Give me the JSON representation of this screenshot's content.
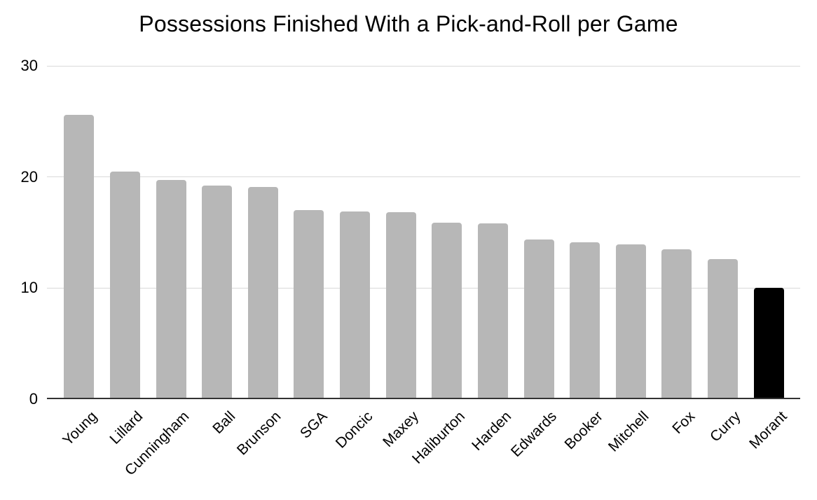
{
  "chart_data": {
    "type": "bar",
    "title": "Possessions Finished With a Pick-and-Roll per Game",
    "categories": [
      "Young",
      "Lillard",
      "Cunningham",
      "Ball",
      "Brunson",
      "SGA",
      "Doncic",
      "Maxey",
      "Haliburton",
      "Harden",
      "Edwards",
      "Booker",
      "Mitchell",
      "Fox",
      "Curry",
      "Morant"
    ],
    "values": [
      25.6,
      20.5,
      19.7,
      19.2,
      19.1,
      17.0,
      16.9,
      16.8,
      15.9,
      15.8,
      14.4,
      14.1,
      13.9,
      13.5,
      12.6,
      10.0
    ],
    "xlabel": "",
    "ylabel": "",
    "ylim": [
      0,
      30
    ],
    "yticks": [
      0,
      10,
      20,
      30
    ],
    "grid": true,
    "legend_position": "none",
    "x_tick_rotation_deg": -45,
    "colors": {
      "bar": "#b7b7b7",
      "highlight": "#000000",
      "gridline": "#d9d9d9",
      "axis_line": "#333333",
      "text": "#000000",
      "background": "#ffffff"
    },
    "highlight_category": "Morant"
  }
}
